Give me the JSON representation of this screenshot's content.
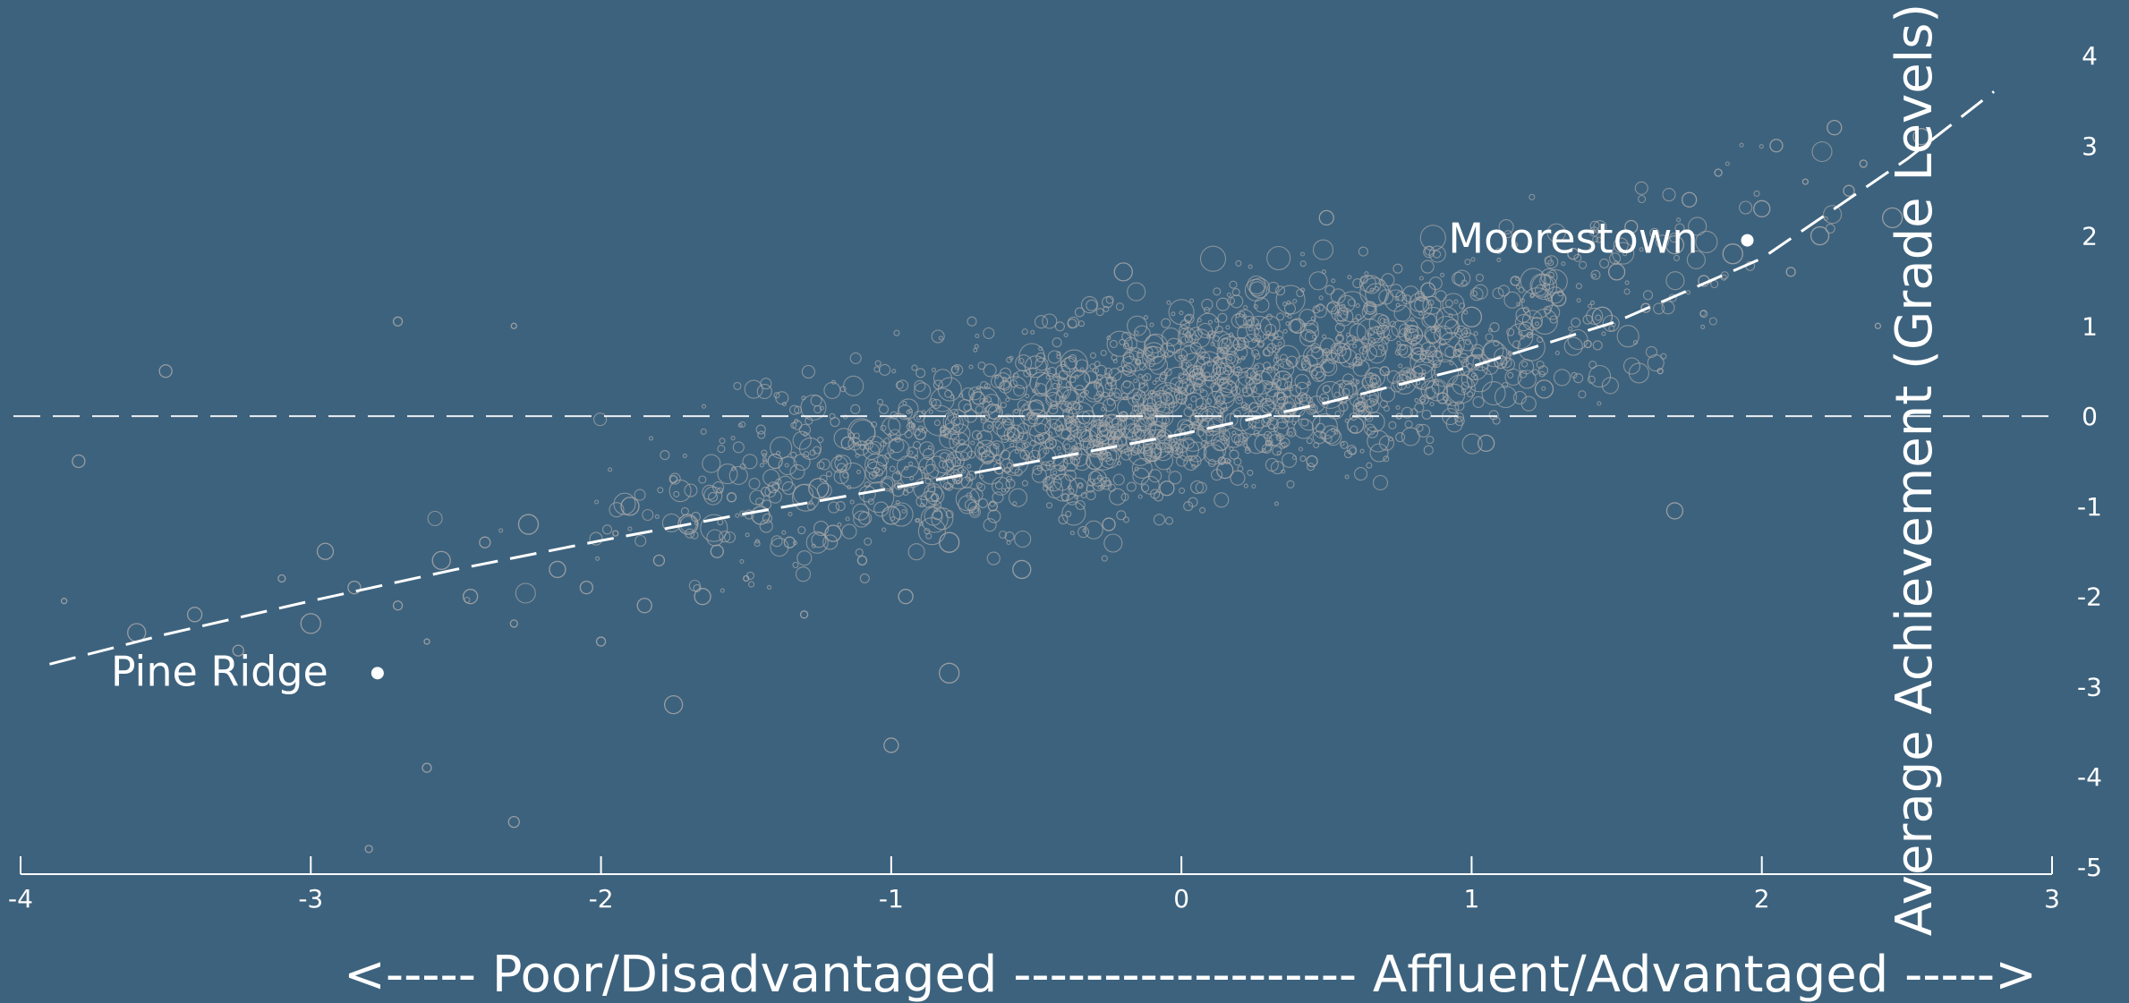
{
  "colors": {
    "background": "#3d627d",
    "points": "#a8a8a8",
    "foreground": "#ffffff"
  },
  "chart_data": {
    "type": "scatter",
    "xlabel": "<----- Poor/Disadvantaged ------------------- Affluent/Advantaged ----->",
    "ylabel": "Average Achievement (Grade Levels)",
    "xlim": [
      -4,
      3
    ],
    "ylim": [
      -5,
      4
    ],
    "xticks": [
      "-4",
      "-3",
      "-2",
      "-1",
      "0",
      "1",
      "2",
      "3"
    ],
    "yticks": [
      "-5",
      "-4",
      "-3",
      "-2",
      "-1",
      "0",
      "1",
      "2",
      "3",
      "4"
    ],
    "grid": false,
    "legend": "none",
    "reference_line": {
      "y": 0,
      "style": "dashed"
    },
    "fit_curve": {
      "style": "dashed",
      "x": [
        -3.9,
        -3.5,
        -3.0,
        -2.5,
        -2.0,
        -1.5,
        -1.0,
        -0.5,
        0.0,
        0.5,
        1.0,
        1.5,
        2.0,
        2.5,
        2.8
      ],
      "y": [
        -2.75,
        -2.42,
        -2.05,
        -1.7,
        -1.38,
        -1.08,
        -0.8,
        -0.5,
        -0.2,
        0.15,
        0.55,
        1.05,
        1.75,
        2.85,
        3.6
      ]
    },
    "highlighted_points": [
      {
        "label": "Pine Ridge",
        "x": -2.77,
        "y": -2.85
      },
      {
        "label": "Moorestown",
        "x": 1.95,
        "y": 1.95
      }
    ],
    "points": [
      [
        -3.85,
        -2.05
      ],
      [
        -3.6,
        -2.4
      ],
      [
        -3.4,
        -2.2
      ],
      [
        -3.25,
        -2.6
      ],
      [
        -3.1,
        -1.8
      ],
      [
        -3.0,
        -2.3
      ],
      [
        -2.95,
        -1.5
      ],
      [
        -2.85,
        -1.9
      ],
      [
        -2.7,
        -2.1
      ],
      [
        -2.6,
        -2.5
      ],
      [
        -2.55,
        -1.6
      ],
      [
        -2.45,
        -2.0
      ],
      [
        -2.4,
        -1.4
      ],
      [
        -2.3,
        -2.3
      ],
      [
        -2.25,
        -1.2
      ],
      [
        -2.15,
        -1.7
      ],
      [
        -2.05,
        -1.9
      ],
      [
        -2.0,
        -2.5
      ],
      [
        -1.95,
        -1.3
      ],
      [
        -1.9,
        -1.0
      ],
      [
        -1.85,
        -2.1
      ],
      [
        -1.8,
        -1.6
      ],
      [
        -1.75,
        -0.7
      ],
      [
        -1.7,
        -1.2
      ],
      [
        -1.65,
        -2.0
      ],
      [
        -1.6,
        -1.5
      ],
      [
        -1.55,
        -0.9
      ],
      [
        -1.5,
        -1.8
      ],
      [
        -1.45,
        -1.1
      ],
      [
        -1.4,
        -0.5
      ],
      [
        -1.35,
        -1.4
      ],
      [
        -1.3,
        -2.2
      ],
      [
        -1.25,
        -0.8
      ],
      [
        -1.2,
        -1.3
      ],
      [
        -1.15,
        -0.3
      ],
      [
        -1.1,
        -1.6
      ],
      [
        -1.05,
        -0.6
      ],
      [
        -1.0,
        -1.1
      ],
      [
        -0.95,
        -2.0
      ],
      [
        -0.9,
        -0.2
      ],
      [
        -0.85,
        -0.9
      ],
      [
        -0.8,
        -1.4
      ],
      [
        -0.75,
        -0.4
      ],
      [
        -0.7,
        0.2
      ],
      [
        -0.65,
        -1.0
      ],
      [
        -0.6,
        -0.6
      ],
      [
        -0.55,
        -1.7
      ],
      [
        -0.5,
        0.1
      ],
      [
        -0.45,
        -0.3
      ],
      [
        -0.4,
        -0.9
      ],
      [
        -0.35,
        0.4
      ],
      [
        -0.3,
        -0.5
      ],
      [
        -0.25,
        -1.2
      ],
      [
        -0.2,
        0.0
      ],
      [
        -0.15,
        0.6
      ],
      [
        -0.1,
        -0.4
      ],
      [
        -0.05,
        -0.8
      ],
      [
        0.0,
        0.2
      ],
      [
        0.05,
        -0.1
      ],
      [
        0.1,
        0.5
      ],
      [
        0.15,
        -0.6
      ],
      [
        0.2,
        0.8
      ],
      [
        0.25,
        0.1
      ],
      [
        0.3,
        -0.3
      ],
      [
        0.35,
        0.4
      ],
      [
        0.4,
        1.0
      ],
      [
        0.45,
        -0.5
      ],
      [
        0.5,
        0.3
      ],
      [
        0.55,
        0.7
      ],
      [
        0.6,
        -0.1
      ],
      [
        0.65,
        1.2
      ],
      [
        0.7,
        0.5
      ],
      [
        0.75,
        0.0
      ],
      [
        0.8,
        0.9
      ],
      [
        0.85,
        1.4
      ],
      [
        0.9,
        0.2
      ],
      [
        0.95,
        0.7
      ],
      [
        1.0,
        1.1
      ],
      [
        1.05,
        -0.3
      ],
      [
        1.1,
        0.6
      ],
      [
        1.15,
        1.5
      ],
      [
        1.2,
        0.9
      ],
      [
        1.25,
        0.3
      ],
      [
        1.3,
        1.3
      ],
      [
        1.35,
        1.8
      ],
      [
        1.4,
        0.8
      ],
      [
        1.45,
        1.1
      ],
      [
        1.5,
        1.6
      ],
      [
        1.55,
        2.1
      ],
      [
        1.6,
        1.2
      ],
      [
        1.65,
        0.5
      ],
      [
        1.7,
        1.9
      ],
      [
        1.75,
        2.4
      ],
      [
        1.8,
        1.5
      ],
      [
        1.85,
        2.7
      ],
      [
        1.9,
        1.8
      ],
      [
        2.0,
        2.3
      ],
      [
        2.05,
        3.0
      ],
      [
        2.1,
        1.6
      ],
      [
        2.15,
        2.6
      ],
      [
        2.2,
        2.0
      ],
      [
        2.25,
        3.2
      ],
      [
        2.3,
        2.5
      ],
      [
        2.35,
        2.8
      ],
      [
        2.45,
        2.2
      ],
      [
        2.55,
        3.1
      ],
      [
        -3.5,
        0.5
      ],
      [
        -2.7,
        1.05
      ],
      [
        -2.3,
        1.0
      ],
      [
        -1.75,
        -3.2
      ],
      [
        -1.0,
        -3.65
      ],
      [
        -2.3,
        -4.5
      ],
      [
        -2.8,
        -4.8
      ],
      [
        -0.8,
        -2.85
      ],
      [
        1.7,
        -1.05
      ],
      [
        -3.8,
        -0.5
      ],
      [
        -2.6,
        -3.9
      ],
      [
        2.4,
        1.0
      ],
      [
        -0.2,
        1.6
      ],
      [
        0.5,
        2.2
      ]
    ]
  }
}
